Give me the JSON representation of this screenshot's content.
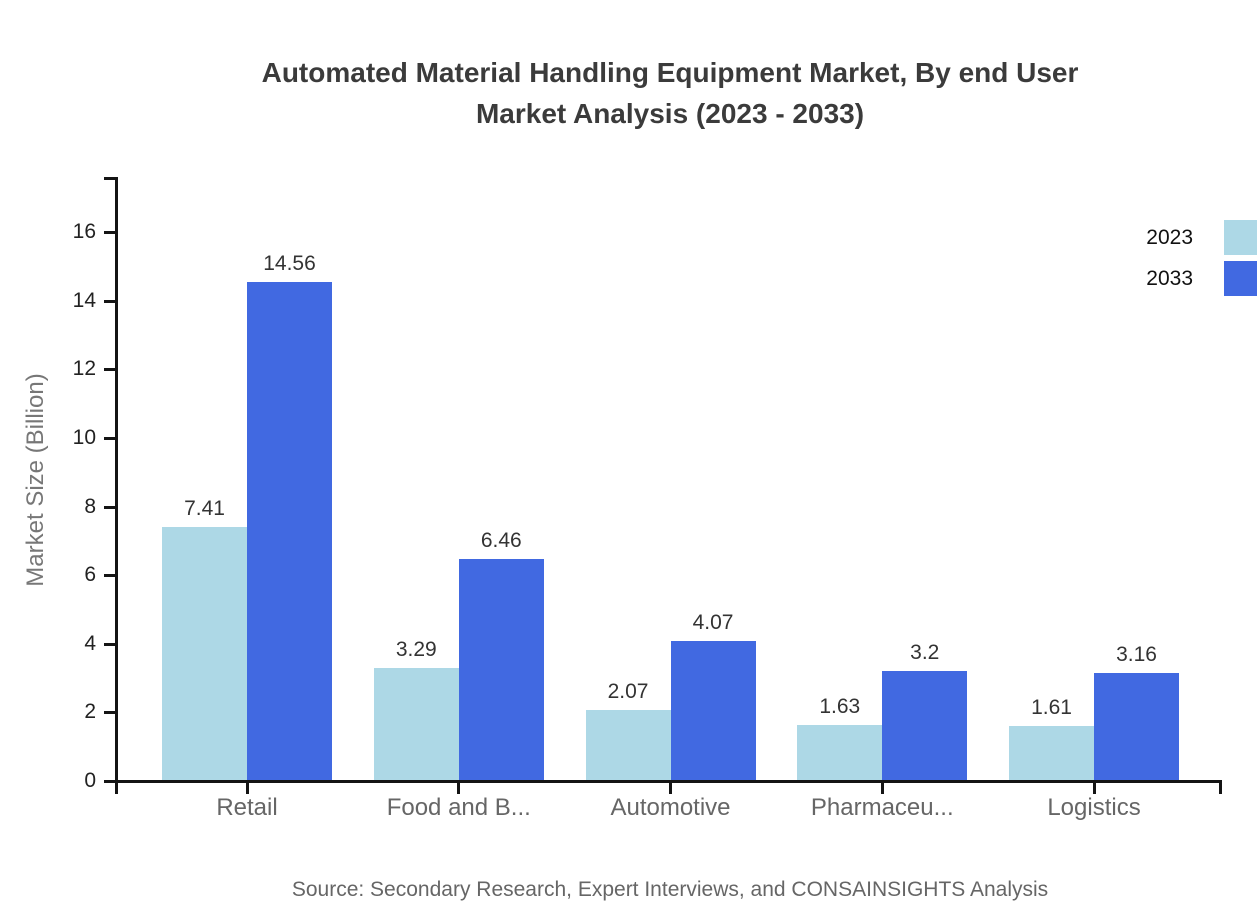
{
  "page": {
    "title_line1": "Automated Material Handling Equipment Market, By end User",
    "title_line2": "Market Analysis (2023 - 2033)",
    "source": "Source: Secondary Research, Expert Interviews, and CONSAINSIGHTS Analysis"
  },
  "chart_data": {
    "type": "bar",
    "title": "Automated Material Handling Equipment Market, By end User Market Analysis (2023 - 2033)",
    "categories": [
      "Retail",
      "Food and B...",
      "Automotive",
      "Pharmaceu...",
      "Logistics"
    ],
    "series": [
      {
        "name": "2023",
        "color": "#ADD8E6",
        "values": [
          7.41,
          3.29,
          2.07,
          1.63,
          1.61
        ]
      },
      {
        "name": "2033",
        "color": "#4169E1",
        "values": [
          14.56,
          6.46,
          4.07,
          3.2,
          3.16
        ]
      }
    ],
    "xlabel": "",
    "ylabel": "Market Size (Billion)",
    "ylim": [
      0,
      17.5
    ],
    "yticks": [
      0,
      2,
      4,
      6,
      8,
      10,
      12,
      14,
      16
    ],
    "grid": false,
    "legend_position": "top-right",
    "value_labels": true,
    "axis_color": "#141414",
    "source_note": "Source: Secondary Research, Expert Interviews, and CONSAINSIGHTS Analysis"
  }
}
